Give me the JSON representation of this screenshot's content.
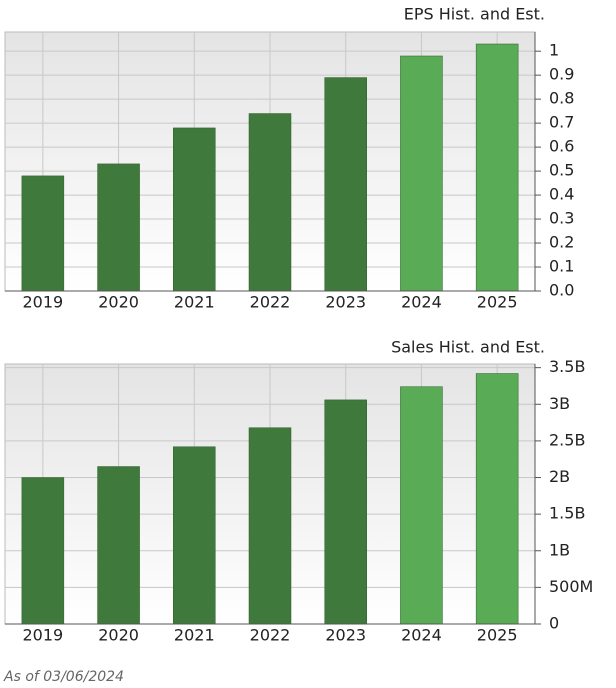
{
  "chart_data": [
    {
      "type": "bar",
      "title": "EPS Hist. and Est.",
      "categories": [
        "2019",
        "2020",
        "2021",
        "2022",
        "2023",
        "2024",
        "2025"
      ],
      "values": [
        0.48,
        0.53,
        0.68,
        0.74,
        0.89,
        0.98,
        1.03
      ],
      "colors": [
        "#3f7a3c",
        "#3f7a3c",
        "#3f7a3c",
        "#3f7a3c",
        "#3f7a3c",
        "#5aab55",
        "#5aab55"
      ],
      "ylim": [
        0,
        1.08
      ],
      "yticks": [
        {
          "value": 0,
          "label": "0.0"
        },
        0.1,
        0.2,
        0.3,
        0.4,
        0.5,
        0.6,
        0.7,
        0.8,
        0.9,
        1
      ],
      "grid": true
    },
    {
      "type": "bar",
      "title": "Sales Hist. and Est.",
      "categories": [
        "2019",
        "2020",
        "2021",
        "2022",
        "2023",
        "2024",
        "2025"
      ],
      "values": [
        2000000000,
        2150000000,
        2420000000,
        2680000000,
        3060000000,
        3240000000,
        3420000000
      ],
      "colors": [
        "#3f7a3c",
        "#3f7a3c",
        "#3f7a3c",
        "#3f7a3c",
        "#3f7a3c",
        "#5aab55",
        "#5aab55"
      ],
      "ylim": [
        0,
        3550000000
      ],
      "yticks": [
        0,
        {
          "value": 500000000,
          "label": "500M"
        },
        {
          "value": 1000000000,
          "label": "1B"
        },
        {
          "value": 1500000000,
          "label": "1.5B"
        },
        {
          "value": 2000000000,
          "label": "2B"
        },
        {
          "value": 2500000000,
          "label": "2.5B"
        },
        {
          "value": 3000000000,
          "label": "3B"
        },
        {
          "value": 3500000000,
          "label": "3.5B"
        }
      ],
      "grid": true
    }
  ],
  "footer": "As of 03/06/2024"
}
